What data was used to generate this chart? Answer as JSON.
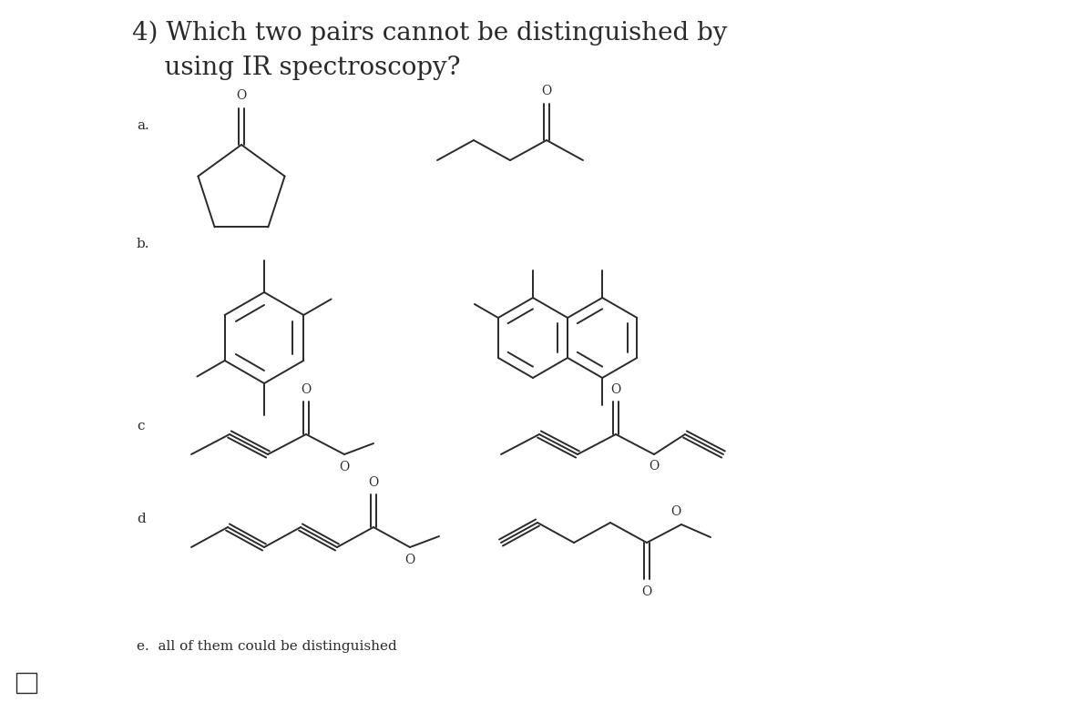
{
  "title_line1": "4) Which two pairs cannot be distinguished by",
  "title_line2": "    using IR spectroscopy?",
  "label_a": "a.",
  "label_b": "b.",
  "label_c": "c",
  "label_d": "d",
  "label_e": "e.  all of them could be distinguished",
  "bg_color": "#ffffff",
  "line_color": "#2a2a2a",
  "text_color": "#2a2a2a",
  "title_fontsize": 20,
  "label_fontsize": 11,
  "answer_fontsize": 11,
  "lw": 1.4
}
